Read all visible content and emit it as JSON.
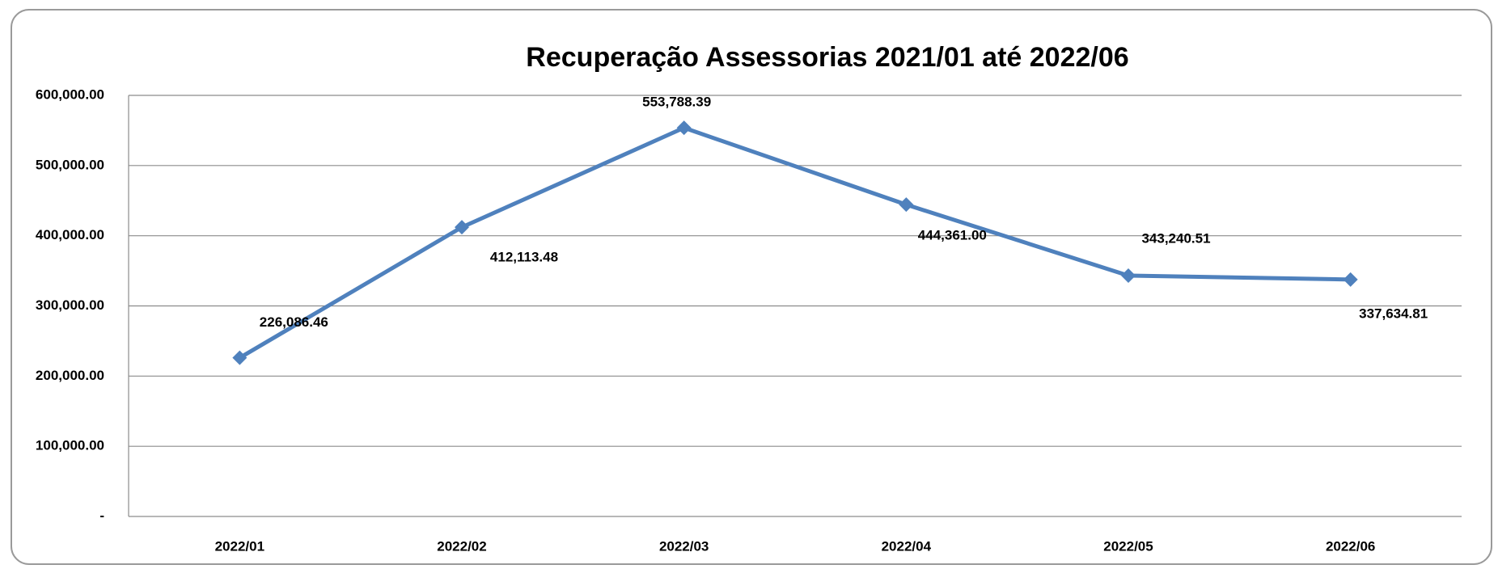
{
  "chart_data": {
    "type": "line",
    "title": "Recuperação Assessorias 2021/01 até 2022/06",
    "categories": [
      "2022/01",
      "2022/02",
      "2022/03",
      "2022/04",
      "2022/05",
      "2022/06"
    ],
    "series": [
      {
        "name": "Recuperação",
        "color": "#4f81bd",
        "values": [
          226086.46,
          412113.48,
          553788.39,
          444361.0,
          343240.51,
          337634.81
        ],
        "value_labels": [
          "226,086.46",
          "412,113.48",
          "553,788.39",
          "444,361.00",
          "343,240.51",
          "337,634.81"
        ]
      }
    ],
    "ylim": [
      0,
      600000
    ],
    "yticks": [
      {
        "value": 0,
        "label": "-"
      },
      {
        "value": 100000,
        "label": "100,000.00"
      },
      {
        "value": 200000,
        "label": "200,000.00"
      },
      {
        "value": 300000,
        "label": "300,000.00"
      },
      {
        "value": 400000,
        "label": "400,000.00"
      },
      {
        "value": 500000,
        "label": "500,000.00"
      },
      {
        "value": 600000,
        "label": "600,000.00"
      }
    ],
    "grid": true
  }
}
